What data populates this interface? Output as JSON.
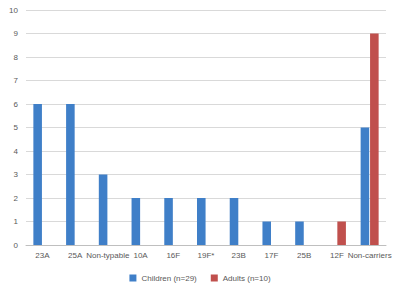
{
  "chart_data": {
    "type": "bar",
    "categories": [
      "23A",
      "25A",
      "Non-typable",
      "10A",
      "16F",
      "19F*",
      "23B",
      "17F",
      "25B",
      "12F",
      "Non-carriers"
    ],
    "series": [
      {
        "name": "Children (n=29)",
        "color": "#3f7fc8",
        "values": [
          6,
          6,
          3,
          2,
          2,
          2,
          2,
          1,
          1,
          null,
          5
        ]
      },
      {
        "name": "Adults (n=10)",
        "color": "#c0504d",
        "values": [
          null,
          null,
          null,
          null,
          null,
          null,
          null,
          null,
          null,
          1,
          9
        ]
      }
    ],
    "ylim": [
      0,
      10
    ],
    "yticks": [
      0,
      1,
      2,
      3,
      4,
      5,
      6,
      7,
      8,
      9,
      10
    ],
    "grid": true,
    "legend": "bottom"
  }
}
